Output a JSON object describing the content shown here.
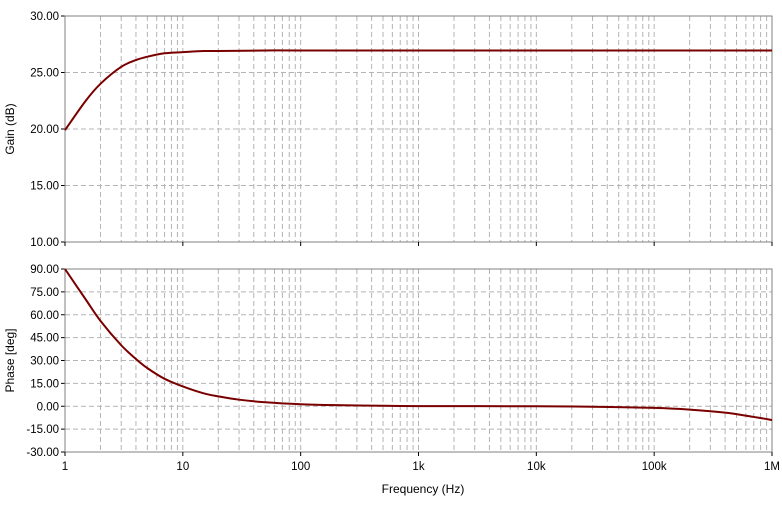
{
  "chart_data": [
    {
      "type": "line",
      "title": "",
      "xlabel": "Frequency (Hz)",
      "ylabel": "Gain (dB)",
      "x_scale": "log",
      "xlim": [
        1,
        1000000
      ],
      "ylim": [
        10,
        30
      ],
      "grid": true,
      "x_tick_labels": [
        "1",
        "10",
        "100",
        "1k",
        "10k",
        "100k",
        "1M"
      ],
      "y_ticks": [
        10,
        15,
        20,
        25,
        30
      ],
      "y_tick_labels": [
        "10.00",
        "15.00",
        "20.00",
        "25.00",
        "30.00"
      ],
      "series": [
        {
          "color": "#7a0000",
          "x": [
            1,
            1.5,
            2,
            3,
            4,
            5,
            7,
            10,
            15,
            20,
            50,
            100,
            1000,
            10000,
            100000,
            1000000
          ],
          "y": [
            19.9,
            22.5,
            24.0,
            25.5,
            26.1,
            26.4,
            26.7,
            26.8,
            26.9,
            26.9,
            26.95,
            26.95,
            26.95,
            26.95,
            26.95,
            26.95
          ]
        }
      ]
    },
    {
      "type": "line",
      "title": "",
      "xlabel": "Frequency (Hz)",
      "ylabel": "Phase [deg]",
      "x_scale": "log",
      "xlim": [
        1,
        1000000
      ],
      "ylim": [
        -30,
        90
      ],
      "grid": true,
      "x_tick_labels": [
        "1",
        "10",
        "100",
        "1k",
        "10k",
        "100k",
        "1M"
      ],
      "y_ticks": [
        -30,
        -15,
        0,
        15,
        30,
        45,
        60,
        75,
        90
      ],
      "y_tick_labels": [
        "-30.00",
        "-15.00",
        "0.00",
        "15.00",
        "30.00",
        "45.00",
        "60.00",
        "75.00",
        "90.00"
      ],
      "series": [
        {
          "color": "#7a0000",
          "x": [
            1,
            1.5,
            2,
            3,
            4,
            5,
            7,
            10,
            15,
            20,
            30,
            50,
            100,
            200,
            500,
            1000,
            10000,
            30000,
            100000,
            200000,
            400000,
            700000,
            1000000
          ],
          "y": [
            90,
            70,
            56,
            40,
            31,
            25,
            18,
            13,
            8.5,
            6.5,
            4.3,
            2.6,
            1.3,
            0.7,
            0.3,
            0.1,
            0,
            -0.3,
            -1.1,
            -2.2,
            -4.2,
            -7,
            -9
          ]
        }
      ]
    }
  ]
}
